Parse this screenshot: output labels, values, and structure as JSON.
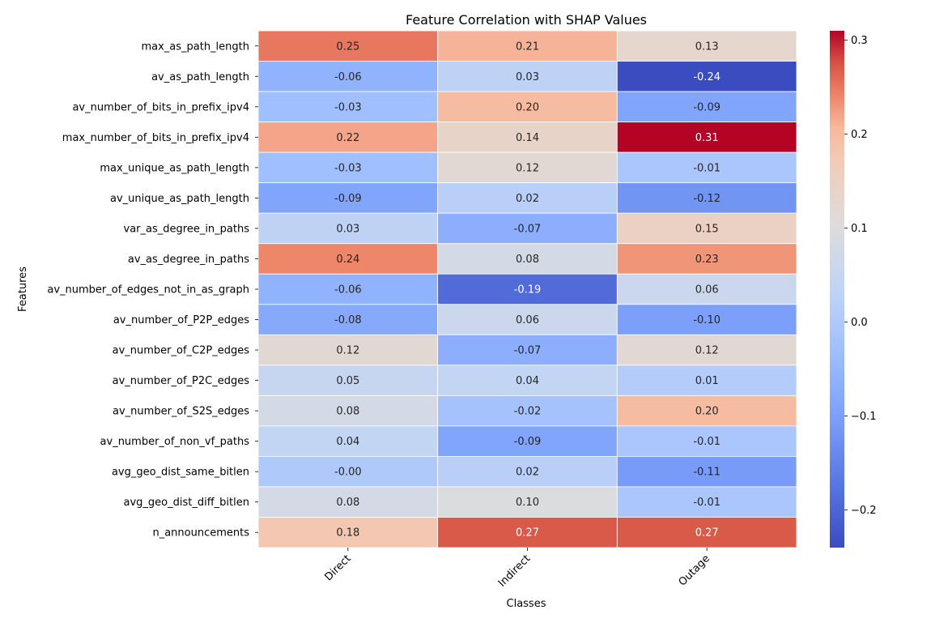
{
  "chart_data": {
    "type": "heatmap",
    "title": "Feature Correlation with SHAP Values",
    "xlabel": "Classes",
    "ylabel": "Features",
    "columns": [
      "Direct",
      "Indirect",
      "Outage"
    ],
    "rows": [
      "max_as_path_length",
      "av_as_path_length",
      "av_number_of_bits_in_prefix_ipv4",
      "max_number_of_bits_in_prefix_ipv4",
      "max_unique_as_path_length",
      "av_unique_as_path_length",
      "var_as_degree_in_paths",
      "av_as_degree_in_paths",
      "av_number_of_edges_not_in_as_graph",
      "av_number_of_P2P_edges",
      "av_number_of_C2P_edges",
      "av_number_of_P2C_edges",
      "av_number_of_S2S_edges",
      "av_number_of_non_vf_paths",
      "avg_geo_dist_same_bitlen",
      "avg_geo_dist_diff_bitlen",
      "n_announcements"
    ],
    "values": [
      [
        0.25,
        0.21,
        0.13
      ],
      [
        -0.06,
        0.03,
        -0.24
      ],
      [
        -0.03,
        0.2,
        -0.09
      ],
      [
        0.22,
        0.14,
        0.31
      ],
      [
        -0.03,
        0.12,
        -0.01
      ],
      [
        -0.09,
        0.02,
        -0.12
      ],
      [
        0.03,
        -0.07,
        0.15
      ],
      [
        0.24,
        0.08,
        0.23
      ],
      [
        -0.06,
        -0.19,
        0.06
      ],
      [
        -0.08,
        0.06,
        -0.1
      ],
      [
        0.12,
        -0.07,
        0.12
      ],
      [
        0.05,
        0.04,
        0.01
      ],
      [
        0.08,
        -0.02,
        0.2
      ],
      [
        0.04,
        -0.09,
        -0.01
      ],
      [
        -0.0,
        0.02,
        -0.11
      ],
      [
        0.08,
        0.1,
        -0.01
      ],
      [
        0.18,
        0.27,
        0.27
      ]
    ],
    "value_labels": [
      [
        "0.25",
        "0.21",
        "0.13"
      ],
      [
        "-0.06",
        "0.03",
        "-0.24"
      ],
      [
        "-0.03",
        "0.20",
        "-0.09"
      ],
      [
        "0.22",
        "0.14",
        "0.31"
      ],
      [
        "-0.03",
        "0.12",
        "-0.01"
      ],
      [
        "-0.09",
        "0.02",
        "-0.12"
      ],
      [
        "0.03",
        "-0.07",
        "0.15"
      ],
      [
        "0.24",
        "0.08",
        "0.23"
      ],
      [
        "-0.06",
        "-0.19",
        "0.06"
      ],
      [
        "-0.08",
        "0.06",
        "-0.10"
      ],
      [
        "0.12",
        "-0.07",
        "0.12"
      ],
      [
        "0.05",
        "0.04",
        "0.01"
      ],
      [
        "0.08",
        "-0.02",
        "0.20"
      ],
      [
        "0.04",
        "-0.09",
        "-0.01"
      ],
      [
        "-0.00",
        "0.02",
        "-0.11"
      ],
      [
        "0.08",
        "0.10",
        "-0.01"
      ],
      [
        "0.18",
        "0.27",
        "0.27"
      ]
    ],
    "colormap": "coolwarm",
    "colorbar": {
      "range": [
        -0.24,
        0.31
      ],
      "ticks": [
        -0.2,
        -0.1,
        0.0,
        0.1,
        0.2,
        0.3
      ],
      "tick_labels": [
        "−0.2",
        "−0.1",
        "0.0",
        "0.1",
        "0.2",
        "0.3"
      ]
    },
    "grid": false,
    "legend": "colorbar-right"
  }
}
